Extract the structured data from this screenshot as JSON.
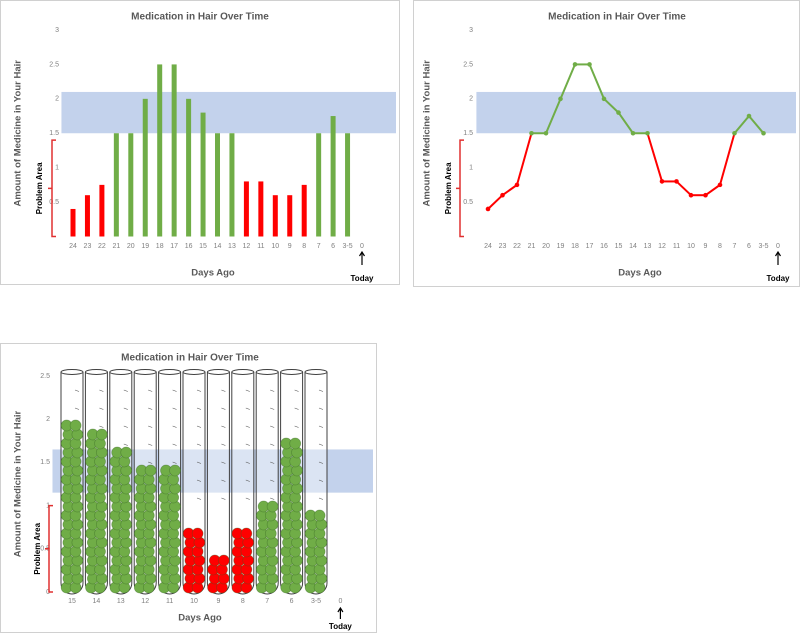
{
  "chart_data": [
    {
      "type": "bar",
      "title": "Medication in Hair Over Time",
      "y_label": "Amount of Medicine in Your Hair",
      "x_label": "Days Ago",
      "today_label": "Today",
      "problem_label": "Problem Area",
      "categories": [
        "24",
        "23",
        "22",
        "21",
        "20",
        "19",
        "18",
        "17",
        "16",
        "15",
        "14",
        "13",
        "12",
        "11",
        "10",
        "9",
        "8",
        "7",
        "6",
        "3-5",
        "0"
      ],
      "values": [
        0.4,
        0.6,
        0.75,
        1.5,
        1.5,
        2,
        2.5,
        2.5,
        2,
        1.8,
        1.5,
        1.5,
        0.8,
        0.8,
        0.6,
        0.6,
        0.75,
        1.5,
        1.75,
        1.5,
        null
      ],
      "colors": [
        "#ff0000",
        "#ff0000",
        "#ff0000",
        "#70ad47",
        "#70ad47",
        "#70ad47",
        "#70ad47",
        "#70ad47",
        "#70ad47",
        "#70ad47",
        "#70ad47",
        "#70ad47",
        "#ff0000",
        "#ff0000",
        "#ff0000",
        "#ff0000",
        "#ff0000",
        "#70ad47",
        "#70ad47",
        "#70ad47",
        null
      ],
      "ylim": [
        0,
        3
      ],
      "yticks": [
        0.5,
        1,
        1.5,
        2,
        2.5,
        3
      ],
      "target_range": [
        1.5,
        2.1
      ],
      "target_color": "#b4c7e7",
      "problem_range": [
        0,
        1.4
      ],
      "problem_color": "#e03030"
    },
    {
      "type": "line",
      "title": "Medication in Hair Over Time",
      "y_label": "Amount of Medicine in Your Hair",
      "x_label": "Days Ago",
      "today_label": "Today",
      "problem_label": "Problem Area",
      "categories": [
        "24",
        "23",
        "22",
        "21",
        "20",
        "19",
        "18",
        "17",
        "16",
        "15",
        "14",
        "13",
        "12",
        "11",
        "10",
        "9",
        "8",
        "7",
        "6",
        "3-5",
        "0"
      ],
      "values": [
        0.4,
        0.6,
        0.75,
        1.5,
        1.5,
        2,
        2.5,
        2.5,
        2,
        1.8,
        1.5,
        1.5,
        0.8,
        0.8,
        0.6,
        0.6,
        0.75,
        1.5,
        1.75,
        1.5,
        null
      ],
      "colors": [
        "#ff0000",
        "#ff0000",
        "#ff0000",
        "#70ad47",
        "#70ad47",
        "#70ad47",
        "#70ad47",
        "#70ad47",
        "#70ad47",
        "#70ad47",
        "#70ad47",
        "#70ad47",
        "#ff0000",
        "#ff0000",
        "#ff0000",
        "#ff0000",
        "#ff0000",
        "#70ad47",
        "#70ad47",
        "#70ad47",
        null
      ],
      "ylim": [
        0,
        3
      ],
      "yticks": [
        0.5,
        1,
        1.5,
        2,
        2.5,
        3
      ],
      "target_range": [
        1.5,
        2.1
      ],
      "target_color": "#b4c7e7",
      "problem_range": [
        0,
        1.4
      ],
      "problem_color": "#e03030"
    },
    {
      "type": "tubes",
      "title": "Medication in Hair Over Time",
      "y_label": "Amount of Medicine in Your Hair",
      "x_label": "Days Ago",
      "today_label": "Today",
      "problem_label": "Problem Area",
      "categories": [
        "15",
        "14",
        "13",
        "12",
        "11",
        "10",
        "9",
        "8",
        "7",
        "6",
        "3-5",
        "0"
      ],
      "values": [
        2.05,
        1.9,
        1.75,
        1.5,
        1.5,
        0.75,
        0.5,
        0.75,
        1.05,
        1.8,
        1.0,
        null
      ],
      "colors": [
        "#70ad47",
        "#70ad47",
        "#70ad47",
        "#70ad47",
        "#70ad47",
        "#ff0000",
        "#ff0000",
        "#ff0000",
        "#70ad47",
        "#70ad47",
        "#70ad47",
        null
      ],
      "ylim": [
        0,
        2.5
      ],
      "yticks": [
        0,
        0.5,
        1,
        1.5,
        2,
        2.5
      ],
      "target_range": [
        1.15,
        1.65
      ],
      "target_color": "#b4c7e7",
      "problem_range": [
        0,
        1.0
      ],
      "problem_color": "#e03030"
    }
  ]
}
